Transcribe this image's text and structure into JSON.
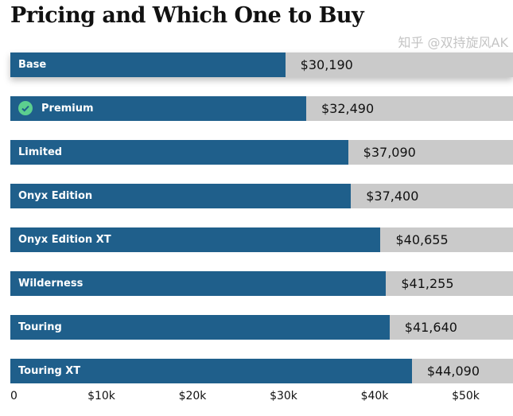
{
  "chart_data": {
    "type": "bar",
    "orientation": "horizontal",
    "title": "Pricing and Which One to Buy",
    "categories": [
      "Base",
      "Premium",
      "Limited",
      "Onyx Edition",
      "Onyx Edition XT",
      "Wilderness",
      "Touring",
      "Touring XT"
    ],
    "values": [
      30190,
      32490,
      37090,
      37400,
      40655,
      41255,
      41640,
      44090
    ],
    "value_labels": [
      "$30,190",
      "$32,490",
      "$37,090",
      "$37,400",
      "$40,655",
      "$41,255",
      "$41,640",
      "$44,090"
    ],
    "highlighted": "Base",
    "recommended": "Premium",
    "xlim": [
      0,
      55500
    ],
    "x_ticks": [
      0,
      10000,
      20000,
      30000,
      40000,
      50000
    ],
    "x_tick_labels": [
      "0",
      "$10k",
      "$20k",
      "$30k",
      "$40k",
      "$50k"
    ],
    "xlabel": "",
    "ylabel": "",
    "grid": false,
    "colors": {
      "bar": "#1f5f8b",
      "track": "#cacaca",
      "check": "#5ccf8f"
    }
  },
  "watermark": "知乎 @双持旋风AK"
}
